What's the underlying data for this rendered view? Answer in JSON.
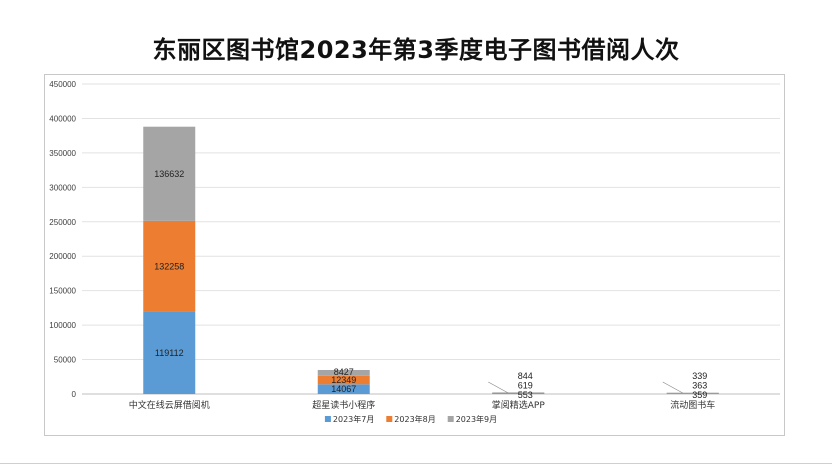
{
  "chart_data": {
    "type": "bar",
    "stacked": true,
    "title": "东丽区图书馆2023年第3季度电子图书借阅人次",
    "categories": [
      "中文在线云屏借阅机",
      "超星读书小程序",
      "掌阅精选APP",
      "流动图书车"
    ],
    "series": [
      {
        "name": "2023年7月",
        "color": "#5b9bd5",
        "values": [
          119112,
          14067,
          553,
          359
        ]
      },
      {
        "name": "2023年8月",
        "color": "#ed7d31",
        "values": [
          132258,
          12349,
          619,
          363
        ]
      },
      {
        "name": "2023年9月",
        "color": "#a5a5a5",
        "values": [
          136632,
          8427,
          844,
          339
        ]
      }
    ],
    "ylim": [
      0,
      450000
    ],
    "yticks": [
      "0",
      "50000",
      "100000",
      "150000",
      "200000",
      "250000",
      "300000",
      "350000",
      "400000",
      "450000"
    ],
    "grid": true,
    "legend_position": "bottom"
  }
}
